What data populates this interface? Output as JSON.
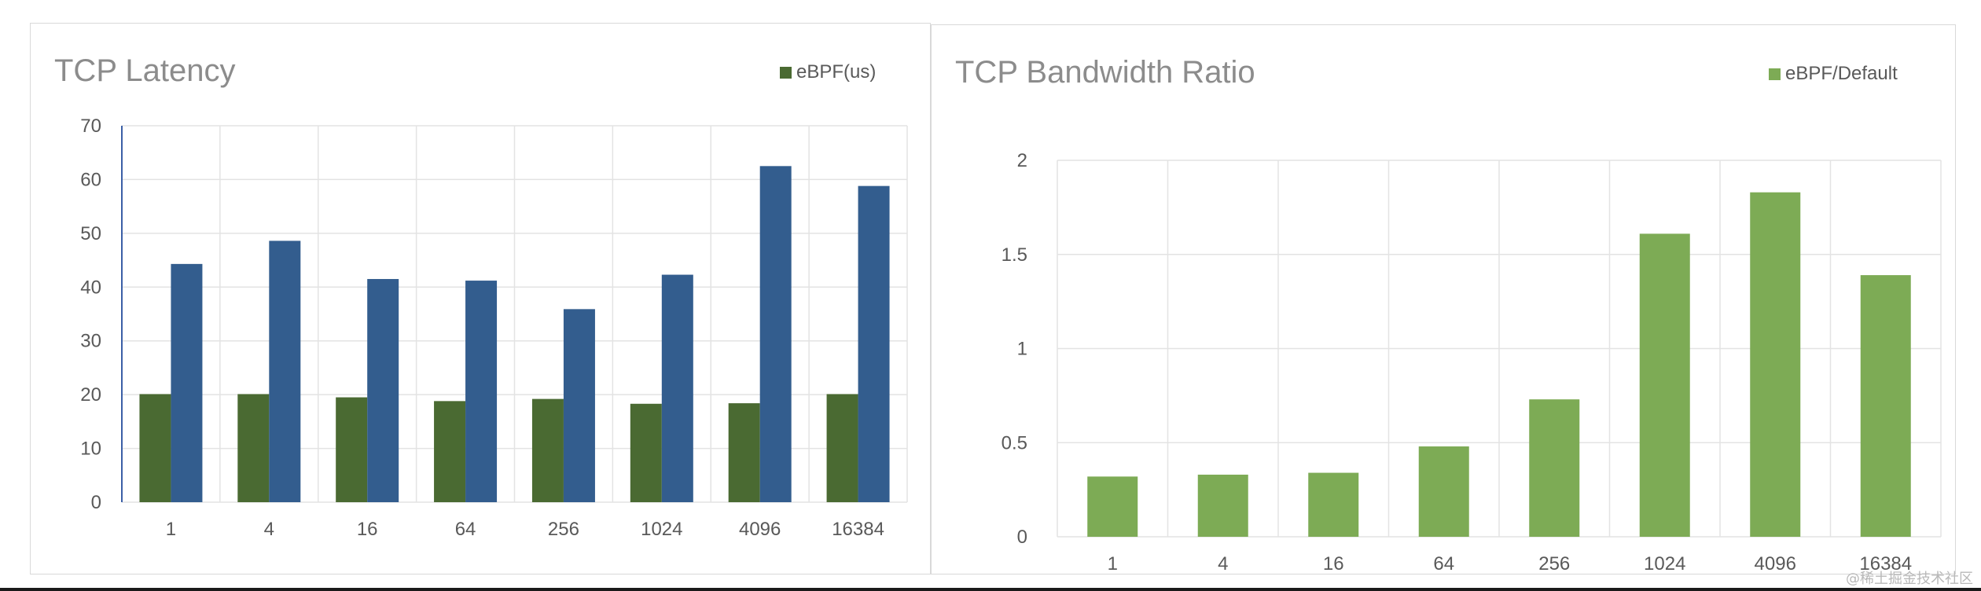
{
  "chart_data": [
    {
      "type": "bar",
      "title": "TCP Latency",
      "categories": [
        "1",
        "4",
        "16",
        "64",
        "256",
        "1024",
        "4096",
        "16384"
      ],
      "series": [
        {
          "name": "eBPF(us)",
          "color": "#4a6a32",
          "values": [
            20.1,
            20.1,
            19.5,
            18.8,
            19.2,
            18.3,
            18.4,
            20.1
          ]
        },
        {
          "name": "",
          "color": "#335d8e",
          "values": [
            44.3,
            48.6,
            41.5,
            41.2,
            35.9,
            42.3,
            62.5,
            58.8
          ]
        }
      ],
      "ylim": [
        0,
        70
      ],
      "yticks": [
        "0",
        "10",
        "20",
        "30",
        "40",
        "50",
        "60",
        "70"
      ],
      "grid": true,
      "legend": "top-right"
    },
    {
      "type": "bar",
      "title": "TCP Bandwidth Ratio",
      "categories": [
        "1",
        "4",
        "16",
        "64",
        "256",
        "1024",
        "4096",
        "16384"
      ],
      "series": [
        {
          "name": "eBPF/Default",
          "color": "#7dab55",
          "values": [
            0.32,
            0.33,
            0.34,
            0.48,
            0.73,
            1.61,
            1.83,
            1.39
          ]
        }
      ],
      "ylim": [
        0,
        2
      ],
      "yticks": [
        "0",
        "0.5",
        "1",
        "1.5",
        "2"
      ],
      "grid": true,
      "legend": "top-right"
    }
  ],
  "watermark": "@稀土掘金技术社区"
}
